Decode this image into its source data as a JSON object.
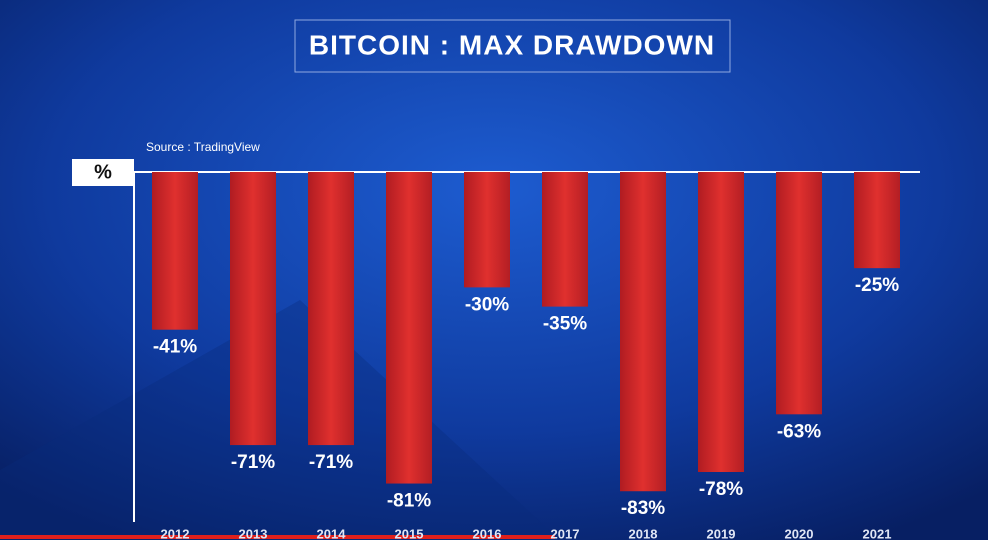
{
  "chart_data": {
    "type": "bar",
    "title": "BITCOIN : MAX DRAWDOWN",
    "subtitle": "Source : TradingView",
    "y_label": "%",
    "categories": [
      "2012",
      "2013",
      "2014",
      "2015",
      "2016",
      "2017",
      "2018",
      "2019",
      "2020",
      "2021"
    ],
    "values": [
      -41,
      -71,
      -71,
      -81,
      -30,
      -35,
      -83,
      -78,
      -63,
      -25
    ],
    "value_labels": [
      "-41%",
      "-71%",
      "-71%",
      "-81%",
      "-30%",
      "-35%",
      "-83%",
      "-78%",
      "-63%",
      "-25%"
    ],
    "color": "#d42a2a",
    "ylim": [
      -91,
      0
    ]
  }
}
